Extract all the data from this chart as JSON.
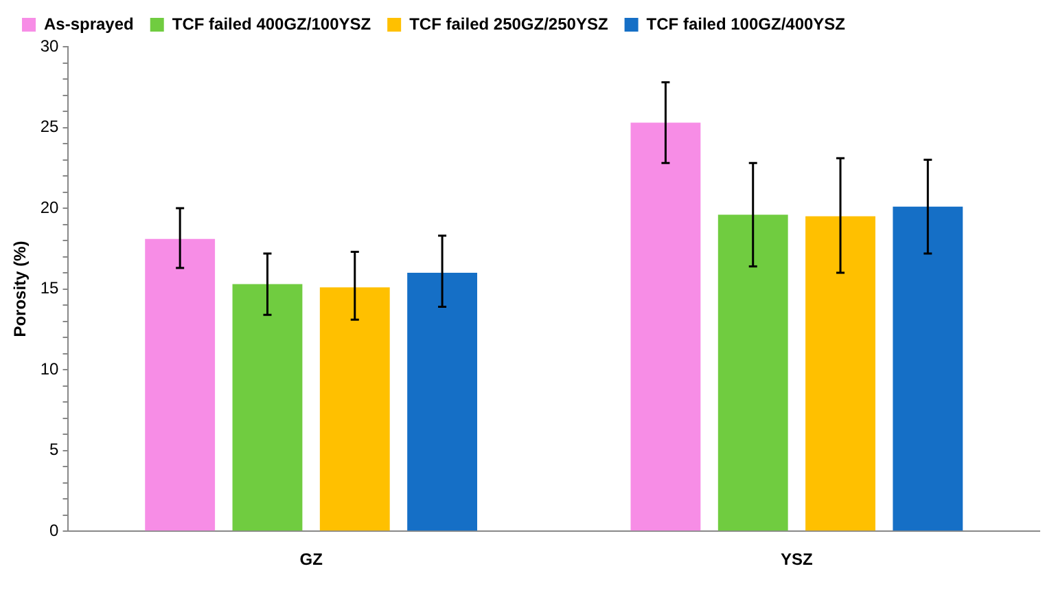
{
  "chart_data": {
    "type": "bar",
    "ylabel": "Porosity (%)",
    "categories": [
      "GZ",
      "YSZ"
    ],
    "series": [
      {
        "name": "As-sprayed",
        "color": "#f78de6",
        "values": [
          18.1,
          25.3
        ],
        "errors": [
          [
            16.3,
            20.0
          ],
          [
            22.8,
            27.8
          ]
        ]
      },
      {
        "name": "TCF failed 400GZ/100YSZ",
        "color": "#70cc40",
        "values": [
          15.3,
          19.6
        ],
        "errors": [
          [
            13.4,
            17.2
          ],
          [
            16.4,
            22.8
          ]
        ]
      },
      {
        "name": "TCF failed 250GZ/250YSZ",
        "color": "#ffc000",
        "values": [
          15.1,
          19.5
        ],
        "errors": [
          [
            13.1,
            17.3
          ],
          [
            16.0,
            23.1
          ]
        ]
      },
      {
        "name": "TCF failed 100GZ/400YSZ",
        "color": "#156fc6",
        "values": [
          16.0,
          20.1
        ],
        "errors": [
          [
            13.9,
            18.3
          ],
          [
            17.2,
            23.0
          ]
        ]
      }
    ],
    "ylim": [
      0,
      30
    ],
    "yticks": [
      0,
      {
        "value": 1,
        "label": null
      },
      {
        "value": 2,
        "label": null
      },
      {
        "value": 3,
        "label": null
      },
      {
        "value": 4,
        "label": null
      },
      5,
      {
        "value": 6,
        "label": null
      },
      {
        "value": 7,
        "label": null
      },
      {
        "value": 8,
        "label": null
      },
      {
        "value": 9,
        "label": null
      },
      10,
      {
        "value": 11,
        "label": null
      },
      {
        "value": 12,
        "label": null
      },
      {
        "value": 13,
        "label": null
      },
      {
        "value": 14,
        "label": null
      },
      15,
      {
        "value": 16,
        "label": null
      },
      {
        "value": 17,
        "label": null
      },
      {
        "value": 18,
        "label": null
      },
      {
        "value": 19,
        "label": null
      },
      20,
      {
        "value": 21,
        "label": null
      },
      {
        "value": 22,
        "label": null
      },
      {
        "value": 23,
        "label": null
      },
      {
        "value": 24,
        "label": null
      },
      25,
      {
        "value": 26,
        "label": null
      },
      {
        "value": 27,
        "label": null
      },
      {
        "value": 28,
        "label": null
      },
      {
        "value": 29,
        "label": null
      },
      30
    ],
    "grid": false,
    "legend": "top"
  }
}
